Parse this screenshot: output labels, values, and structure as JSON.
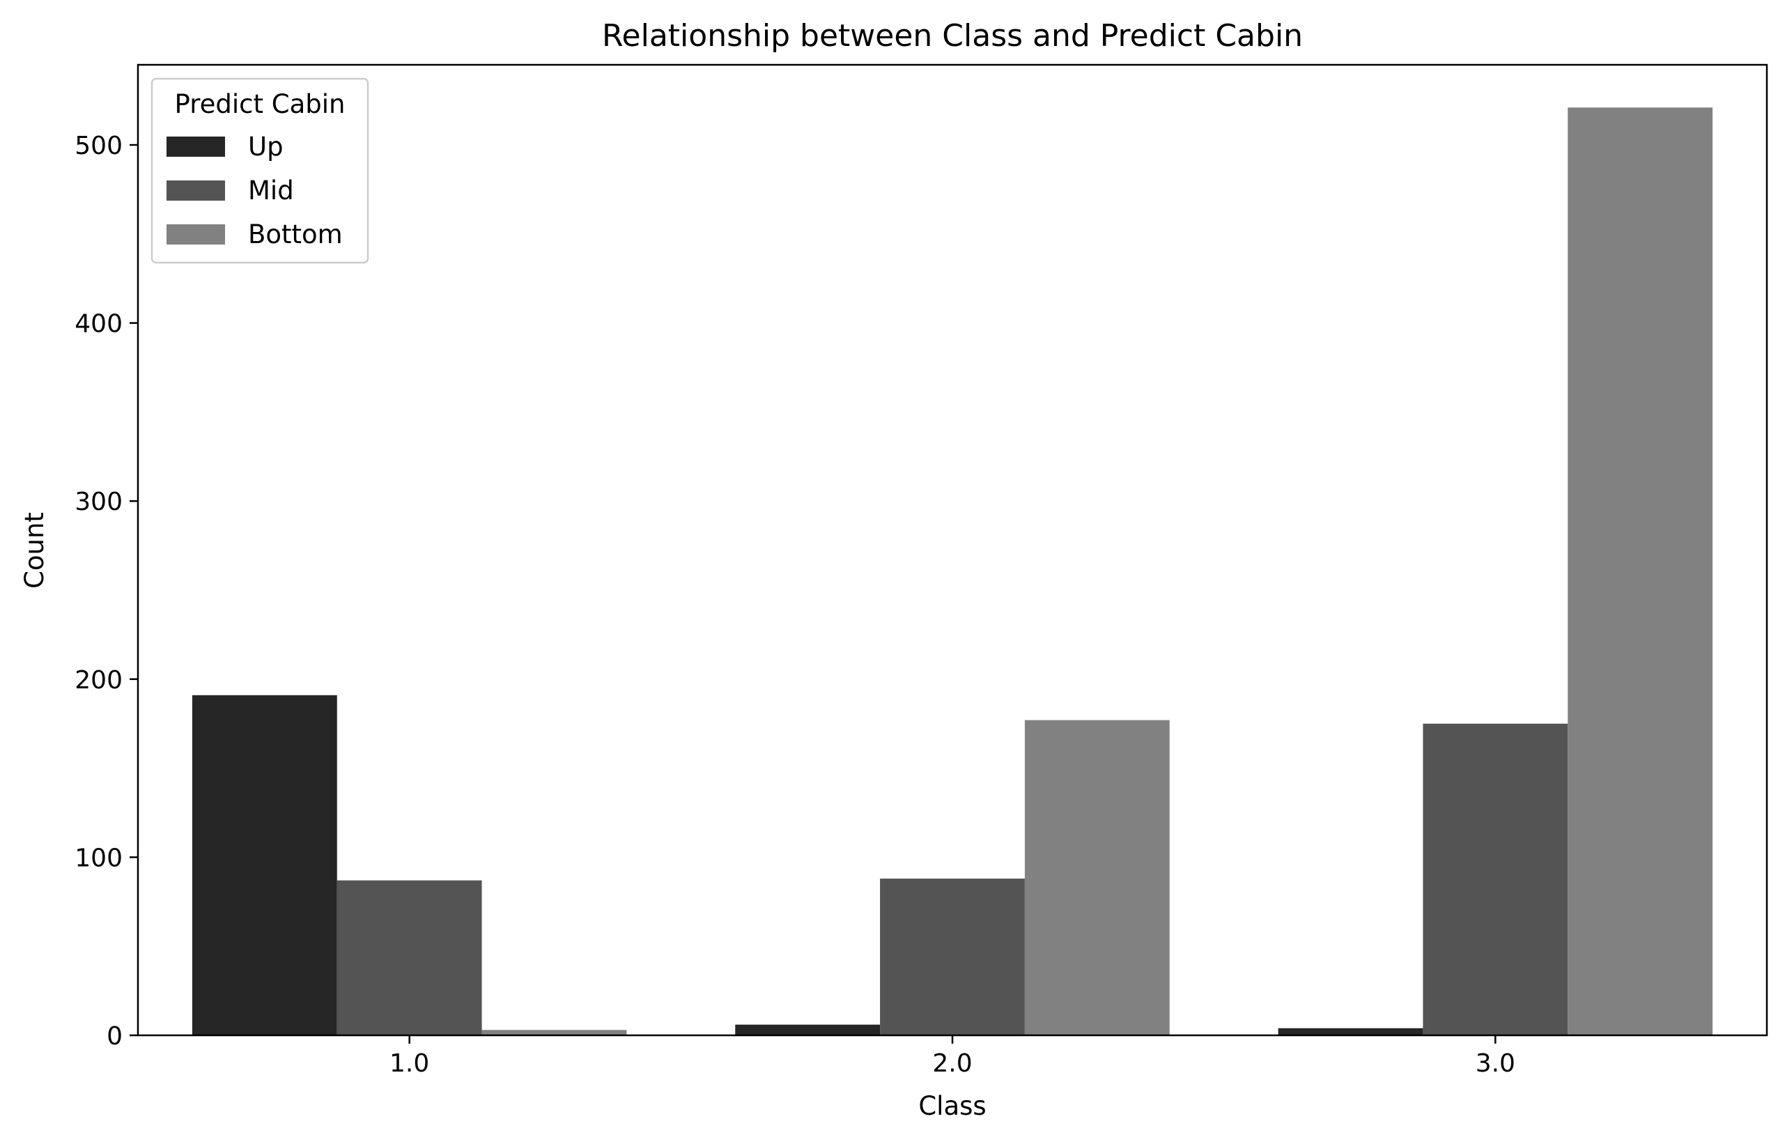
{
  "chart_data": {
    "type": "bar",
    "title": "Relationship between Class and Predict Cabin",
    "xlabel": "Class",
    "ylabel": "Count",
    "categories": [
      "1.0",
      "2.0",
      "3.0"
    ],
    "ylim": [
      0,
      545
    ],
    "yticks": [
      0,
      100,
      200,
      300,
      400,
      500
    ],
    "grid": false,
    "legend": {
      "title": "Predict Cabin",
      "placement": "top-left"
    },
    "series": [
      {
        "name": "Up",
        "color": "#262626",
        "values": [
          191,
          6,
          4
        ]
      },
      {
        "name": "Mid",
        "color": "#545454",
        "values": [
          87,
          88,
          175
        ]
      },
      {
        "name": "Bottom",
        "color": "#818181",
        "values": [
          3,
          177,
          521
        ]
      }
    ]
  }
}
